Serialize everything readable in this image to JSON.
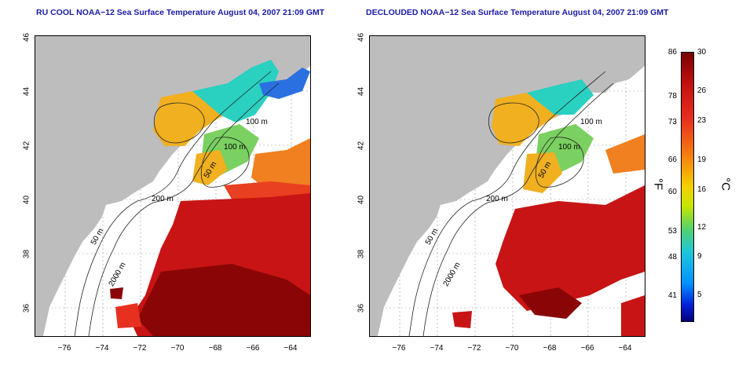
{
  "left_panel": {
    "title": "RU COOL NOAA−12 Sea Surface Temperature August 04, 2007 21:09 GMT"
  },
  "right_panel": {
    "title": "DECLOUDED NOAA−12 Sea Surface Temperature August 04, 2007 21:09 GMT"
  },
  "axes": {
    "x_ticks": [
      "−76",
      "−74",
      "−72",
      "−70",
      "−68",
      "−66",
      "−64"
    ],
    "y_ticks": [
      "46",
      "44",
      "42",
      "40",
      "38",
      "36"
    ]
  },
  "contour_labels": [
    "100 m",
    "100 m",
    "50 m",
    "200 m",
    "50 m",
    "2000 m"
  ],
  "colorbar": {
    "fahrenheit_ticks": [
      "86",
      "78",
      "73",
      "66",
      "60",
      "53",
      "48",
      "41"
    ],
    "celsius_ticks": [
      "30",
      "26",
      "23",
      "19",
      "16",
      "12",
      "9",
      "5"
    ],
    "unit_f": "°F",
    "unit_c": "°C"
  },
  "colors": {
    "land": "#bdbdbd",
    "warm": "#c81414",
    "hot": "#8a0606",
    "cool": "#2ad0c0",
    "mid": "#f0b020",
    "title": "#1a1aa6"
  }
}
